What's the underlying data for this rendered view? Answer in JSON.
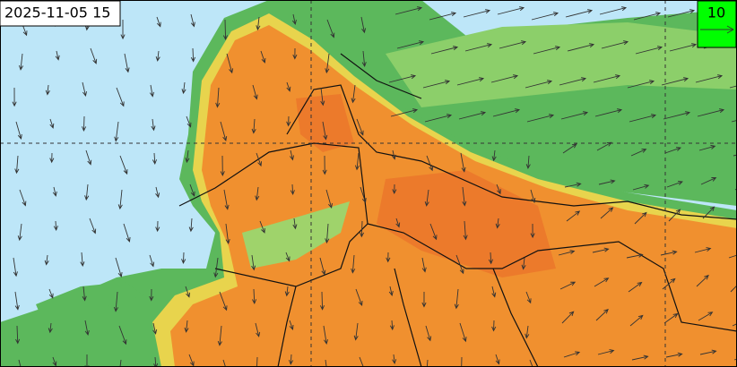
{
  "timestamp": "2025-11-05 15",
  "reference_vector": {
    "label": "10"
  }
}
